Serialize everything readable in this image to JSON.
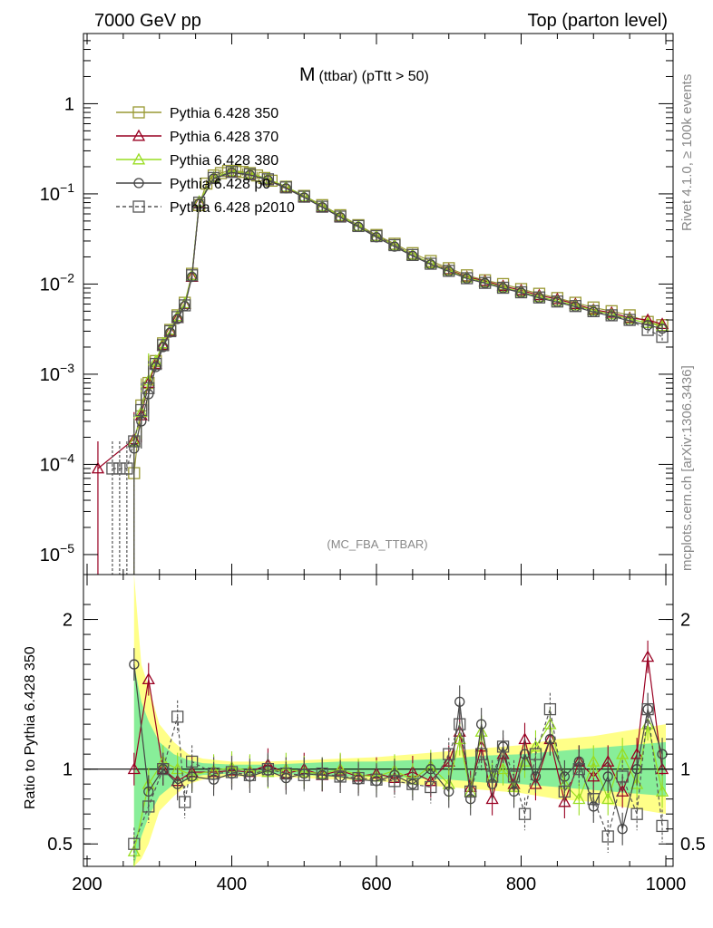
{
  "header": {
    "left_title": "7000 GeV pp",
    "right_title": "Top (parton level)"
  },
  "plot": {
    "title_main": "M",
    "title_sub": "(ttbar) (pTtt > 50)",
    "watermark": "(MC_FBA_TTBAR)",
    "side_label_top": "Rivet 4.1.0, ≥ 100k events",
    "side_label_bottom": "mcplots.cern.ch [arXiv:1306.3436]"
  },
  "ratio": {
    "ylabel": "Ratio to Pythia 6.428 350"
  },
  "colors": {
    "s350": "#999933",
    "s370": "#990022",
    "s380": "#99dd22",
    "p0": "#444444",
    "p2010": "#555555",
    "band_yellow": "#ffff88",
    "band_green": "#88ee99"
  },
  "chart_data": {
    "type": "line",
    "xlabel": "",
    "ylabel": "",
    "x_ticks": [
      "200",
      "400",
      "600",
      "800",
      "1000"
    ],
    "main_ylim": [
      6e-06,
      6
    ],
    "main_yscale": "log",
    "main_y_ticks": [
      "10^-5",
      "10^-4",
      "10^-3",
      "10^-2",
      "10^-1",
      "1"
    ],
    "ratio_ylim": [
      0.35,
      2.3
    ],
    "ratio_y_ticks": [
      "0.5",
      "1",
      "2"
    ],
    "xlim": [
      195,
      1010
    ],
    "legend_position": "top-left",
    "series": [
      {
        "key": "s350",
        "name": "Pythia 6.428 350",
        "marker": "square",
        "dashed": false,
        "x": [
          265,
          275,
          285,
          295,
          305,
          315,
          325,
          335,
          345,
          355,
          365,
          375,
          385,
          395,
          405,
          415,
          425,
          435,
          445,
          455,
          475,
          500,
          525,
          550,
          575,
          600,
          625,
          650,
          675,
          700,
          725,
          750,
          775,
          800,
          825,
          850,
          875,
          900,
          925,
          950,
          975,
          995
        ],
        "y": [
          8e-05,
          0.00045,
          0.0008,
          0.0014,
          0.0022,
          0.0031,
          0.0045,
          0.0062,
          0.013,
          0.075,
          0.13,
          0.16,
          0.17,
          0.18,
          0.18,
          0.175,
          0.17,
          0.16,
          0.15,
          0.14,
          0.12,
          0.095,
          0.075,
          0.058,
          0.045,
          0.035,
          0.028,
          0.022,
          0.018,
          0.015,
          0.0125,
          0.011,
          0.01,
          0.0088,
          0.0078,
          0.007,
          0.0062,
          0.0055,
          0.005,
          0.0045,
          0.0038,
          0.0035
        ]
      },
      {
        "key": "s370",
        "name": "Pythia 6.428 370",
        "marker": "triangle",
        "dashed": false,
        "x": [
          215,
          265,
          275,
          285,
          295,
          305,
          315,
          325,
          335,
          345,
          355,
          375,
          400,
          425,
          450,
          475,
          500,
          525,
          550,
          575,
          600,
          625,
          650,
          675,
          700,
          725,
          750,
          775,
          800,
          825,
          850,
          875,
          900,
          925,
          950,
          975,
          995
        ],
        "y": [
          9e-05,
          0.00019,
          0.00035,
          0.0008,
          0.0013,
          0.0021,
          0.003,
          0.0042,
          0.006,
          0.012,
          0.08,
          0.15,
          0.175,
          0.165,
          0.145,
          0.118,
          0.093,
          0.072,
          0.056,
          0.044,
          0.034,
          0.027,
          0.021,
          0.017,
          0.0145,
          0.012,
          0.0108,
          0.0095,
          0.0085,
          0.0075,
          0.0068,
          0.006,
          0.0052,
          0.0048,
          0.0042,
          0.004,
          0.0036
        ]
      },
      {
        "key": "s380",
        "name": "Pythia 6.428 380",
        "marker": "triangle",
        "dashed": false,
        "x": [
          265,
          275,
          285,
          295,
          305,
          315,
          325,
          335,
          345,
          355,
          375,
          400,
          425,
          450,
          475,
          500,
          525,
          550,
          575,
          600,
          625,
          650,
          675,
          700,
          725,
          750,
          775,
          800,
          825,
          850,
          875,
          900,
          925,
          950,
          975,
          995
        ],
        "y": [
          0.00018,
          0.00038,
          0.00085,
          0.0014,
          0.0022,
          0.0031,
          0.0044,
          0.0061,
          0.0125,
          0.082,
          0.152,
          0.178,
          0.168,
          0.147,
          0.12,
          0.094,
          0.073,
          0.057,
          0.044,
          0.034,
          0.027,
          0.021,
          0.017,
          0.0142,
          0.0118,
          0.0105,
          0.0092,
          0.0082,
          0.0072,
          0.0065,
          0.0058,
          0.0051,
          0.0046,
          0.0041,
          0.0037,
          0.0034
        ]
      },
      {
        "key": "p0",
        "name": "Pythia 6.428 p0",
        "marker": "circle",
        "dashed": false,
        "x": [
          265,
          275,
          285,
          295,
          305,
          315,
          325,
          335,
          345,
          355,
          375,
          400,
          425,
          450,
          475,
          500,
          525,
          550,
          575,
          600,
          625,
          650,
          675,
          700,
          725,
          750,
          775,
          800,
          825,
          850,
          875,
          900,
          925,
          950,
          975,
          995
        ],
        "y": [
          0.00015,
          0.0003,
          0.0006,
          0.0012,
          0.002,
          0.0029,
          0.0041,
          0.0057,
          0.012,
          0.078,
          0.148,
          0.172,
          0.162,
          0.142,
          0.115,
          0.091,
          0.071,
          0.055,
          0.043,
          0.033,
          0.026,
          0.0205,
          0.0165,
          0.0138,
          0.0115,
          0.0102,
          0.009,
          0.008,
          0.007,
          0.0063,
          0.0056,
          0.0049,
          0.0044,
          0.0039,
          0.0035,
          0.0032
        ]
      },
      {
        "key": "p2010",
        "name": "Pythia 6.428 p2010",
        "marker": "square",
        "dashed": true,
        "x": [
          235,
          245,
          255,
          265,
          275,
          285,
          295,
          305,
          315,
          325,
          335,
          345,
          355,
          375,
          400,
          425,
          450,
          475,
          500,
          525,
          550,
          575,
          600,
          625,
          650,
          675,
          700,
          725,
          750,
          775,
          800,
          825,
          850,
          875,
          900,
          925,
          950,
          975,
          995
        ],
        "y": [
          9e-05,
          9e-05,
          9e-05,
          0.00018,
          0.0004,
          0.0007,
          0.0013,
          0.0021,
          0.003,
          0.0043,
          0.0058,
          0.0125,
          0.08,
          0.15,
          0.175,
          0.165,
          0.145,
          0.118,
          0.093,
          0.072,
          0.056,
          0.044,
          0.034,
          0.027,
          0.021,
          0.0168,
          0.014,
          0.0116,
          0.0103,
          0.0091,
          0.0081,
          0.0071,
          0.0064,
          0.0057,
          0.005,
          0.0045,
          0.004,
          0.0031,
          0.0026
        ]
      }
    ],
    "ratio_series": [
      {
        "key": "s370",
        "x": [
          265,
          285,
          305,
          325,
          345,
          375,
          400,
          425,
          450,
          475,
          500,
          525,
          550,
          575,
          600,
          625,
          650,
          675,
          700,
          715,
          730,
          745,
          760,
          775,
          790,
          805,
          820,
          840,
          860,
          880,
          900,
          920,
          940,
          960,
          975,
          995
        ],
        "y": [
          1.0,
          1.6,
          1.0,
          0.92,
          0.98,
          0.98,
          0.99,
          0.98,
          1.03,
          0.97,
          1.0,
          0.96,
          0.99,
          0.95,
          0.97,
          0.94,
          0.98,
          0.92,
          1.05,
          1.25,
          0.88,
          1.15,
          0.8,
          1.1,
          0.9,
          1.2,
          0.9,
          1.2,
          0.78,
          1.05,
          0.95,
          1.05,
          0.85,
          1.1,
          1.75,
          1.0
        ]
      },
      {
        "key": "s380",
        "x": [
          265,
          285,
          305,
          325,
          345,
          375,
          400,
          425,
          450,
          475,
          500,
          525,
          550,
          575,
          600,
          625,
          650,
          675,
          700,
          715,
          730,
          745,
          760,
          775,
          790,
          805,
          820,
          840,
          860,
          880,
          900,
          920,
          940,
          960,
          975,
          995
        ],
        "y": [
          0.45,
          0.9,
          1.05,
          1.0,
          0.96,
          0.99,
          1.01,
          0.99,
          0.98,
          1.0,
          0.98,
          0.97,
          1.0,
          0.96,
          0.95,
          0.99,
          0.93,
          1.02,
          0.9,
          1.2,
          0.85,
          1.25,
          0.95,
          1.0,
          0.88,
          1.05,
          1.15,
          1.3,
          0.9,
          0.8,
          1.05,
          0.8,
          1.1,
          0.9,
          1.3,
          0.85
        ]
      },
      {
        "key": "p0",
        "x": [
          265,
          285,
          305,
          325,
          345,
          375,
          400,
          425,
          450,
          475,
          500,
          525,
          550,
          575,
          600,
          625,
          650,
          675,
          700,
          715,
          730,
          745,
          760,
          775,
          790,
          805,
          820,
          840,
          860,
          880,
          900,
          920,
          940,
          960,
          975,
          995
        ],
        "y": [
          1.7,
          0.85,
          1.0,
          0.9,
          0.95,
          0.93,
          0.97,
          0.95,
          0.99,
          0.94,
          0.97,
          0.96,
          0.95,
          0.93,
          0.92,
          0.96,
          0.9,
          1.0,
          0.85,
          1.45,
          0.8,
          1.3,
          0.9,
          1.15,
          0.85,
          1.1,
          0.95,
          1.2,
          0.95,
          1.05,
          0.75,
          0.95,
          0.6,
          1.0,
          1.4,
          1.1
        ]
      },
      {
        "key": "p2010",
        "x": [
          265,
          285,
          305,
          325,
          335,
          345,
          375,
          400,
          425,
          450,
          475,
          500,
          525,
          550,
          575,
          600,
          625,
          650,
          675,
          700,
          715,
          730,
          745,
          760,
          775,
          790,
          805,
          820,
          840,
          860,
          880,
          900,
          920,
          940,
          960,
          975,
          995
        ],
        "y": [
          0.5,
          0.75,
          1.0,
          1.35,
          0.78,
          1.05,
          0.97,
          0.98,
          0.96,
          1.0,
          0.97,
          0.96,
          0.97,
          0.95,
          0.94,
          0.93,
          0.92,
          0.9,
          0.88,
          1.1,
          1.3,
          0.85,
          1.1,
          0.95,
          1.15,
          0.95,
          0.7,
          1.1,
          1.4,
          0.85,
          1.0,
          0.8,
          0.55,
          0.95,
          0.7,
          1.4,
          0.62
        ]
      }
    ],
    "uncertainty_band": {
      "x": [
        265,
        275,
        285,
        300,
        320,
        340,
        360,
        400,
        450,
        500,
        550,
        600,
        650,
        700,
        750,
        800,
        850,
        900,
        950,
        1000
      ],
      "yellow_lo": [
        0.35,
        0.4,
        0.5,
        0.72,
        0.82,
        0.9,
        0.93,
        0.95,
        0.95,
        0.94,
        0.93,
        0.92,
        0.9,
        0.88,
        0.86,
        0.84,
        0.8,
        0.78,
        0.74,
        0.7
      ],
      "yellow_hi": [
        2.3,
        1.7,
        1.55,
        1.3,
        1.18,
        1.1,
        1.07,
        1.05,
        1.05,
        1.06,
        1.07,
        1.08,
        1.1,
        1.12,
        1.14,
        1.16,
        1.2,
        1.22,
        1.26,
        1.3
      ],
      "green_lo": [
        0.35,
        0.55,
        0.68,
        0.82,
        0.9,
        0.94,
        0.96,
        0.97,
        0.97,
        0.96,
        0.95,
        0.95,
        0.94,
        0.93,
        0.91,
        0.9,
        0.88,
        0.86,
        0.84,
        0.82
      ],
      "green_hi": [
        1.7,
        1.45,
        1.32,
        1.18,
        1.1,
        1.06,
        1.04,
        1.03,
        1.03,
        1.04,
        1.05,
        1.05,
        1.06,
        1.07,
        1.09,
        1.1,
        1.12,
        1.14,
        1.16,
        1.18
      ]
    }
  }
}
